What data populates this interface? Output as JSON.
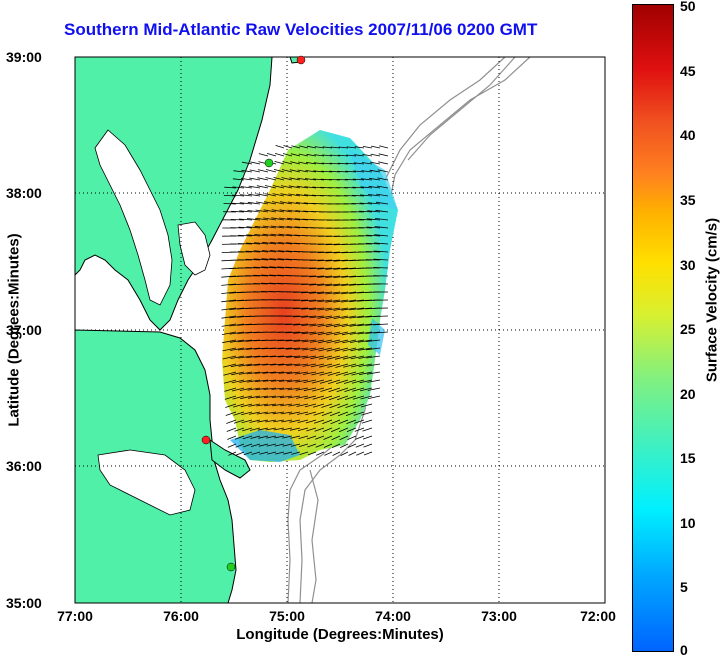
{
  "title": "Southern Mid-Atlantic Raw Velocities 2007/11/06 0200 GMT",
  "axes": {
    "xlabel": "Longitude (Degrees:Minutes)",
    "ylabel": "Latitude (Degrees:Minutes)",
    "xticks": [
      "77:00",
      "76:00",
      "75:00",
      "74:00",
      "73:00",
      "72:00"
    ],
    "yticks": [
      "39:00",
      "38:00",
      "37:00",
      "36:00",
      "35:00"
    ]
  },
  "colorbar": {
    "label": "Surface Velocity (cm/s)",
    "ticks": [
      "50",
      "45",
      "40",
      "35",
      "30",
      "25",
      "20",
      "15",
      "10",
      "5",
      "0"
    ],
    "min": 0,
    "max": 50
  },
  "colors": {
    "land": "#50f0a8",
    "title": "#1010f0",
    "bathymetry": "#909090",
    "station_red": "#ff2020",
    "station_green": "#20d020"
  },
  "stations": [
    {
      "color": "red",
      "lat": 39.0,
      "lon": -74.85
    },
    {
      "color": "green",
      "lat": 38.2,
      "lon": -75.15
    },
    {
      "color": "red",
      "lat": 36.2,
      "lon": -75.75
    },
    {
      "color": "green",
      "lat": 35.25,
      "lon": -75.52
    }
  ]
}
